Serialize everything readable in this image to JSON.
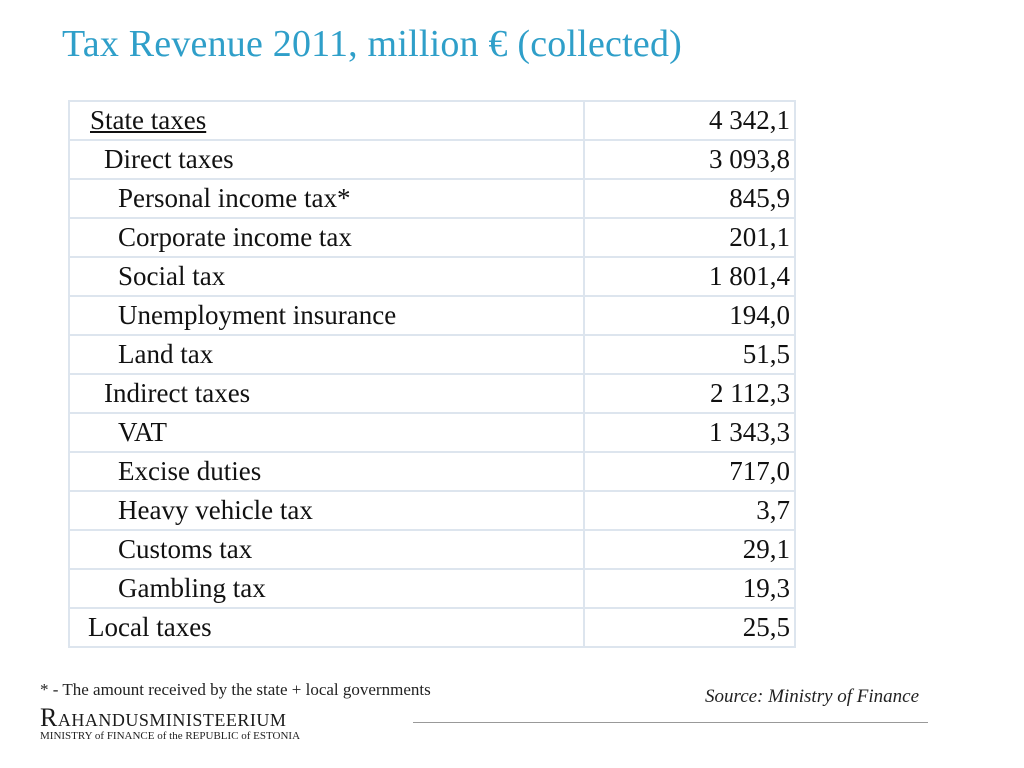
{
  "title": "Tax Revenue 2011, million € (collected)",
  "rows": [
    {
      "label": "State taxes",
      "value": "4 342,1"
    },
    {
      "label": "Direct taxes",
      "value": "3 093,8"
    },
    {
      "label": "Personal income tax*",
      "value": "845,9"
    },
    {
      "label": "Corporate income tax",
      "value": "201,1"
    },
    {
      "label": "Social tax",
      "value": "1 801,4"
    },
    {
      "label": "Unemployment insurance",
      "value": "194,0"
    },
    {
      "label": "Land tax",
      "value": "51,5"
    },
    {
      "label": "Indirect taxes",
      "value": "2 112,3"
    },
    {
      "label": "VAT",
      "value": "1 343,3"
    },
    {
      "label": "Excise duties",
      "value": "717,0"
    },
    {
      "label": "Heavy vehicle tax",
      "value": "3,7"
    },
    {
      "label": "Customs tax",
      "value": "29,1"
    },
    {
      "label": "Gambling tax",
      "value": "19,3"
    },
    {
      "label": "Local taxes",
      "value": "25,5"
    }
  ],
  "footnote": "* - The amount received by the state + local governments",
  "source": "Source: Ministry of Finance",
  "logo": {
    "name": "Rahandusministeerium",
    "subtitle": "MINISTRY of FINANCE of the REPUBLIC of ESTONIA"
  },
  "colors": {
    "title": "#2f9fc9",
    "grid": "#dde5ee"
  }
}
